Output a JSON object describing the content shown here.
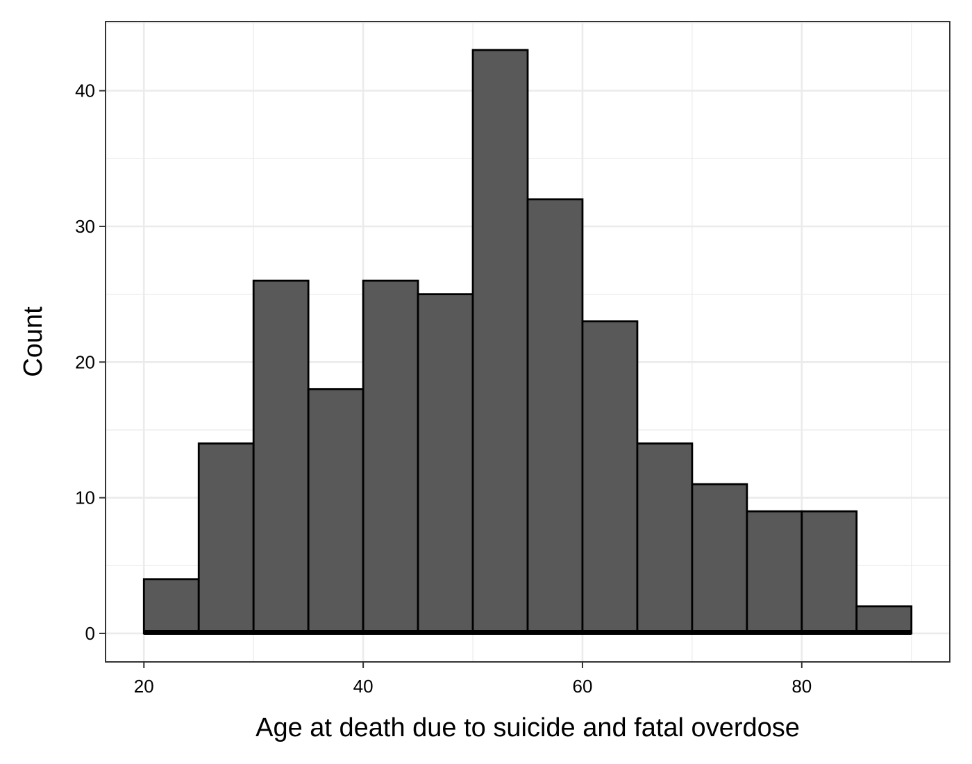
{
  "chart_data": {
    "type": "bar",
    "subtype": "histogram",
    "bin_width": 5,
    "bins": [
      {
        "x_start": 20,
        "x_end": 25,
        "count": 4
      },
      {
        "x_start": 25,
        "x_end": 30,
        "count": 14
      },
      {
        "x_start": 30,
        "x_end": 35,
        "count": 26
      },
      {
        "x_start": 35,
        "x_end": 40,
        "count": 18
      },
      {
        "x_start": 40,
        "x_end": 45,
        "count": 26
      },
      {
        "x_start": 45,
        "x_end": 50,
        "count": 25
      },
      {
        "x_start": 50,
        "x_end": 55,
        "count": 43
      },
      {
        "x_start": 55,
        "x_end": 60,
        "count": 32
      },
      {
        "x_start": 60,
        "x_end": 65,
        "count": 23
      },
      {
        "x_start": 65,
        "x_end": 70,
        "count": 14
      },
      {
        "x_start": 70,
        "x_end": 75,
        "count": 11
      },
      {
        "x_start": 75,
        "x_end": 80,
        "count": 9
      },
      {
        "x_start": 80,
        "x_end": 85,
        "count": 9
      },
      {
        "x_start": 85,
        "x_end": 90,
        "count": 2
      }
    ],
    "title": "",
    "xlabel": "Age at death due to suicide and fatal overdose",
    "ylabel": "Count",
    "xlim": [
      16.5,
      93.5
    ],
    "ylim": [
      -2.1,
      45.1
    ],
    "x_ticks": [
      20,
      40,
      60,
      80
    ],
    "y_ticks": [
      0,
      10,
      20,
      30,
      40
    ],
    "grid": true,
    "legend": "none",
    "bar_fill": "#595959",
    "bar_outline": "#000000",
    "panel_border": "#333333",
    "grid_color": "#ebebeb"
  }
}
